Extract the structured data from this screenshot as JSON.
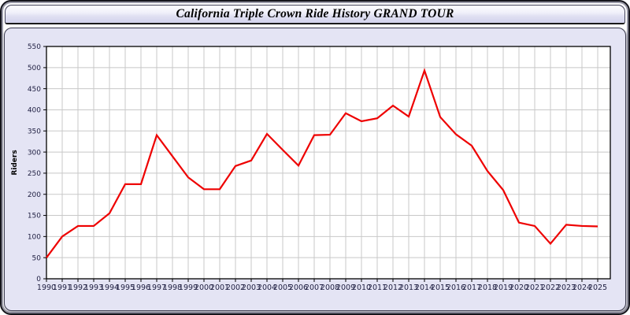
{
  "header": {
    "title": "California Triple Crown Ride History GRAND TOUR"
  },
  "chart_data": {
    "type": "line",
    "title": "California Triple Crown Ride History GRAND TOUR",
    "xlabel": "",
    "ylabel": "Riders",
    "ylim": [
      0,
      550
    ],
    "ytick_step": 50,
    "yticks": [
      0,
      50,
      100,
      150,
      200,
      250,
      300,
      350,
      400,
      450,
      500,
      550
    ],
    "grid": true,
    "legend": "none",
    "x": [
      1990,
      1991,
      1992,
      1993,
      1994,
      1995,
      1996,
      1997,
      1998,
      1999,
      2000,
      2001,
      2002,
      2003,
      2004,
      2005,
      2006,
      2007,
      2008,
      2009,
      2010,
      2011,
      2012,
      2013,
      2014,
      2015,
      2016,
      2017,
      2018,
      2019,
      2020,
      2021,
      2022,
      2023,
      2024,
      2025
    ],
    "series": [
      {
        "name": "Riders",
        "values": [
          50,
          100,
          125,
          125,
          155,
          224,
          224,
          340,
          290,
          240,
          212,
          212,
          267,
          280,
          343,
          305,
          268,
          340,
          341,
          392,
          373,
          380,
          410,
          384,
          493,
          383,
          342,
          315,
          255,
          210,
          133,
          125,
          83,
          128,
          125,
          124
        ]
      }
    ]
  },
  "colors": {
    "line": "#EE0000",
    "panel_bg": "#E4E4F4",
    "plot_bg": "#FFFFFF",
    "grid": "#C8C8C8",
    "axis": "#000000",
    "tick_label": "#222244",
    "title_text": "#000000"
  }
}
